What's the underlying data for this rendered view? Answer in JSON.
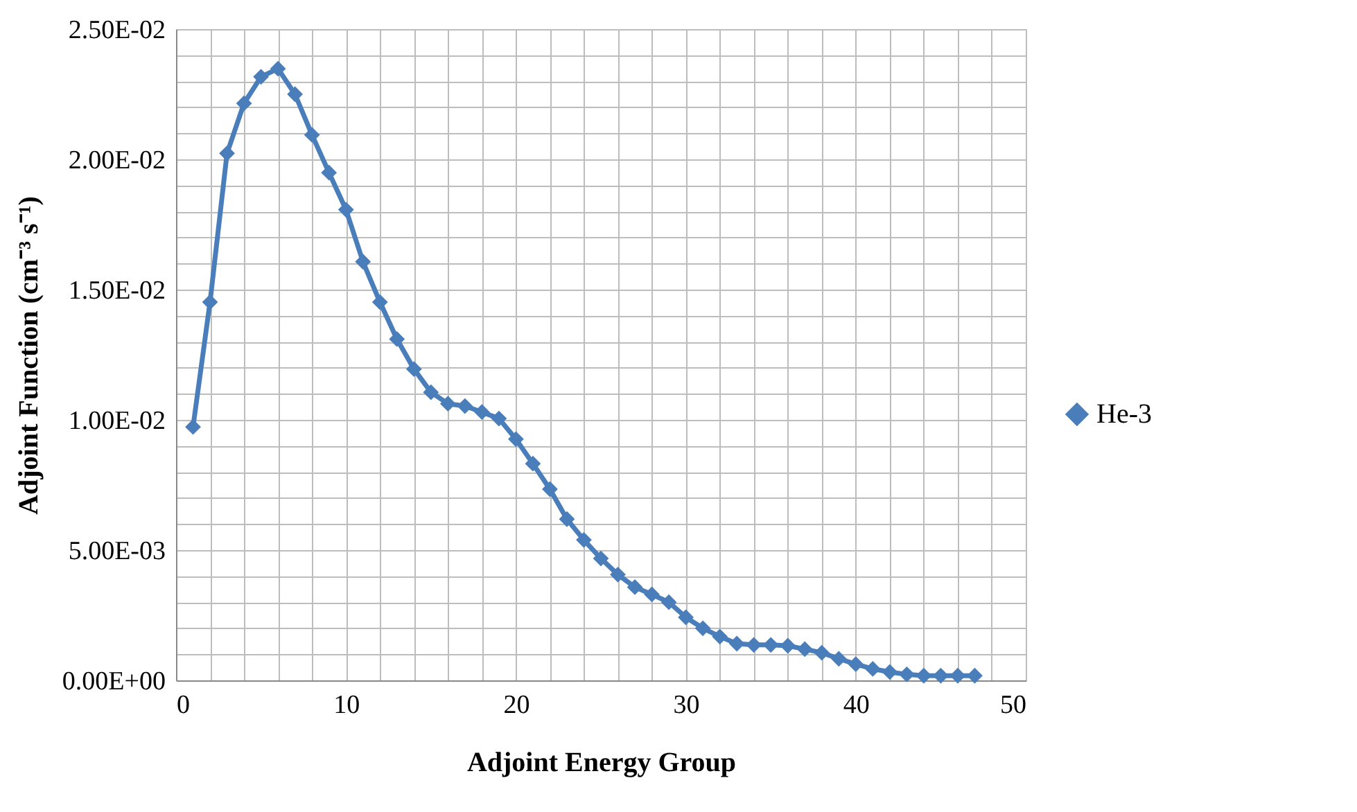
{
  "chart_data": {
    "type": "line",
    "xlabel": "Adjoint Energy Group",
    "ylabel": "Adjoint Function (cm⁻³ s⁻¹)",
    "x": [
      1,
      2,
      3,
      4,
      5,
      6,
      7,
      8,
      9,
      10,
      11,
      12,
      13,
      14,
      15,
      16,
      17,
      18,
      19,
      20,
      21,
      22,
      23,
      24,
      25,
      26,
      27,
      28,
      29,
      30,
      31,
      32,
      33,
      34,
      35,
      36,
      37,
      38,
      39,
      40,
      41,
      42,
      43,
      44,
      45,
      46,
      47
    ],
    "series": [
      {
        "name": "He-3",
        "color": "#4a7ebb",
        "values": [
          0.00973,
          0.01452,
          0.02023,
          0.02215,
          0.02317,
          0.02348,
          0.0225,
          0.02094,
          0.01949,
          0.01807,
          0.01607,
          0.01452,
          0.0131,
          0.01195,
          0.01106,
          0.01062,
          0.01053,
          0.0103,
          0.01005,
          0.00926,
          0.00832,
          0.00734,
          0.00619,
          0.00539,
          0.00468,
          0.00406,
          0.00358,
          0.0033,
          0.003,
          0.00242,
          0.002,
          0.00168,
          0.00141,
          0.00136,
          0.00136,
          0.00133,
          0.0012,
          0.00106,
          0.00083,
          0.00062,
          0.00044,
          0.00032,
          0.00023,
          0.00018,
          0.00018,
          0.00018,
          0.00018
        ]
      }
    ],
    "xlim": [
      0,
      50
    ],
    "xticks": [
      0,
      {
        "value": 2,
        "label": null
      },
      {
        "value": 4,
        "label": null
      },
      {
        "value": 6,
        "label": null
      },
      {
        "value": 8,
        "label": null
      },
      10,
      {
        "value": 12,
        "label": null
      },
      {
        "value": 14,
        "label": null
      },
      {
        "value": 16,
        "label": null
      },
      {
        "value": 18,
        "label": null
      },
      20,
      {
        "value": 22,
        "label": null
      },
      {
        "value": 24,
        "label": null
      },
      {
        "value": 26,
        "label": null
      },
      {
        "value": 28,
        "label": null
      },
      30,
      {
        "value": 32,
        "label": null
      },
      {
        "value": 34,
        "label": null
      },
      {
        "value": 36,
        "label": null
      },
      {
        "value": 38,
        "label": null
      },
      40,
      {
        "value": 42,
        "label": null
      },
      {
        "value": 44,
        "label": null
      },
      {
        "value": 46,
        "label": null
      },
      {
        "value": 48,
        "label": null
      },
      50
    ],
    "ylim": [
      0,
      0.025
    ],
    "yticks": [
      {
        "value": 0,
        "label": "0.00E+00"
      },
      {
        "value": 0.001,
        "label": null
      },
      {
        "value": 0.002,
        "label": null
      },
      {
        "value": 0.003,
        "label": null
      },
      {
        "value": 0.004,
        "label": null
      },
      {
        "value": 0.005,
        "label": "5.00E-03"
      },
      {
        "value": 0.006,
        "label": null
      },
      {
        "value": 0.007,
        "label": null
      },
      {
        "value": 0.008,
        "label": null
      },
      {
        "value": 0.009,
        "label": null
      },
      {
        "value": 0.01,
        "label": "1.00E-02"
      },
      {
        "value": 0.011,
        "label": null
      },
      {
        "value": 0.012,
        "label": null
      },
      {
        "value": 0.013,
        "label": null
      },
      {
        "value": 0.014,
        "label": null
      },
      {
        "value": 0.015,
        "label": "1.50E-02"
      },
      {
        "value": 0.016,
        "label": null
      },
      {
        "value": 0.017,
        "label": null
      },
      {
        "value": 0.018,
        "label": null
      },
      {
        "value": 0.019,
        "label": null
      },
      {
        "value": 0.02,
        "label": "2.00E-02"
      },
      {
        "value": 0.021,
        "label": null
      },
      {
        "value": 0.022,
        "label": null
      },
      {
        "value": 0.023,
        "label": null
      },
      {
        "value": 0.024,
        "label": null
      },
      {
        "value": 0.025,
        "label": "2.50E-02"
      }
    ],
    "grid": true,
    "legend": "right",
    "marker": "diamond",
    "line_style": "solid"
  }
}
